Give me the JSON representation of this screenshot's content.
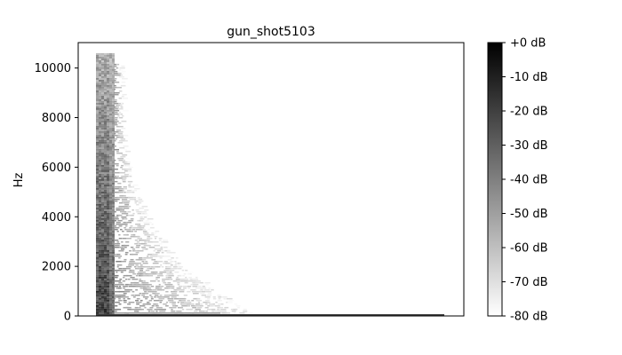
{
  "chart_data": {
    "type": "heatmap",
    "title": "gun_shot5103",
    "xlabel": "",
    "ylabel": "Hz",
    "y_ticks": [
      0,
      2000,
      4000,
      6000,
      8000,
      10000
    ],
    "ylim": [
      0,
      11025
    ],
    "colorbar": {
      "ticks": [
        "+0 dB",
        "-10 dB",
        "-20 dB",
        "-30 dB",
        "-40 dB",
        "-50 dB",
        "-60 dB",
        "-70 dB",
        "-80 dB"
      ],
      "range_db": [
        -80,
        0
      ],
      "colors": [
        "#000000",
        "#ffffff"
      ],
      "placement": "right"
    },
    "colormap": "gray_r",
    "x_axis_ticks_shown": false,
    "grid": false
  }
}
